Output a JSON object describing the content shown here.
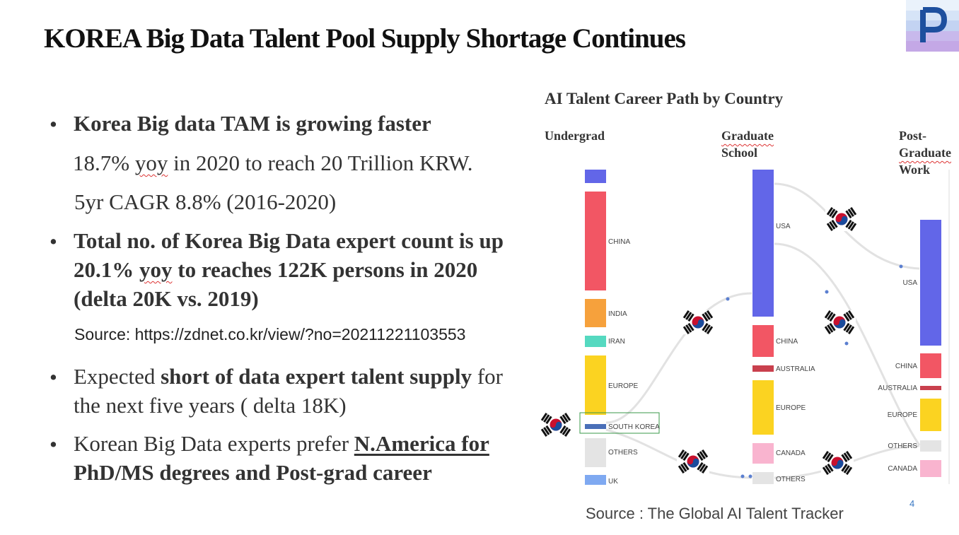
{
  "slide": {
    "title": "KOREA Big Data Talent Pool Supply Shortage Continues",
    "page_number": "4"
  },
  "bullets": {
    "b1_bold": "Korea Big data TAM is growing faster",
    "b1_line2_pre": "18.7% ",
    "b1_line2_yoy": "yoy",
    "b1_line2_post": " in 2020 to reach 20 Trillion KRW.",
    "b1_line3": "5yr CAGR 8.8% (2016-2020)",
    "b2_line1": "Total no. of Korea Big Data expert count is up",
    "b2_line2_pre": "20.1% ",
    "b2_line2_yoy": "yoy",
    "b2_line2_post": " to reaches 122K persons in 2020",
    "b2_line3": "(delta 20K vs. 2019)",
    "source": "Source: https://zdnet.co.kr/view/?no=20211221103553",
    "b3_pre": "Expected ",
    "b3_bold": "short of data expert talent supply",
    "b3_post": " for",
    "b3_line2": "the next five years ( delta 18K)",
    "b4_pre": "Korean Big Data experts prefer ",
    "b4_bold1": "N.America for",
    "b4_bold2": "PhD/MS degrees and Post-grad career"
  },
  "chart": {
    "title": "AI Talent Career Path by Country",
    "stage_undergrad": "Undergrad",
    "stage_grad_1": "Graduate",
    "stage_grad_2": "School",
    "stage_post_1": "Post-",
    "stage_post_2": "Graduate",
    "stage_post_3": "Work",
    "credit": "Source : The Global AI Talent Tracker",
    "undergrad_labels": {
      "china": "CHINA",
      "india": "INDIA",
      "iran": "IRAN",
      "europe": "EUROPE",
      "south_korea": "SOUTH KOREA",
      "others": "OTHERS",
      "uk": "UK"
    },
    "grad_labels": {
      "usa": "USA",
      "china": "CHINA",
      "australia": "AUSTRALIA",
      "europe": "EUROPE",
      "canada": "CANADA",
      "others": "OTHERS"
    },
    "post_labels": {
      "usa": "USA",
      "china": "CHINA",
      "australia": "AUSTRALIA",
      "europe": "EUROPE",
      "others": "OTHERS",
      "canada": "CANADA"
    },
    "colors": {
      "usa": "#6266e8",
      "china": "#f25664",
      "india": "#f6a13c",
      "iran": "#55d9c0",
      "europe": "#fbd321",
      "south_korea": "#4a6fb8",
      "others": "#e4e4e4",
      "uk": "#7fa9f1",
      "australia": "#c9404d",
      "canada": "#f9b4cf",
      "highlight": "#3a9a4a"
    }
  }
}
